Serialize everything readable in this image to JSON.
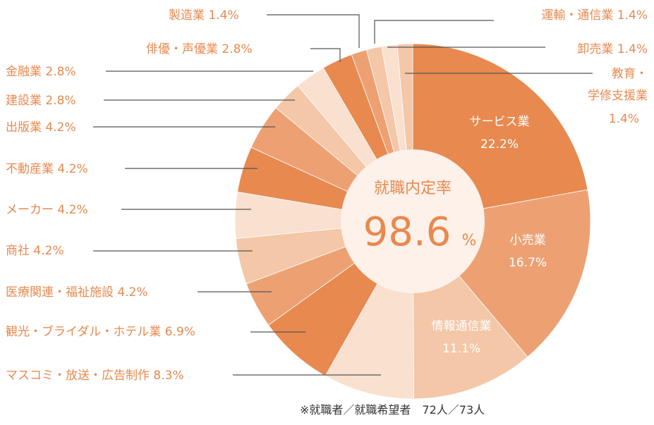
{
  "chart_data": {
    "type": "pie",
    "center": {
      "title": "就職内定率",
      "value": "98.6",
      "unit": "%"
    },
    "slices": [
      {
        "label": "サービス業",
        "value": 22.2,
        "display": "22.2%",
        "color": "#e8894f",
        "label_inside": true
      },
      {
        "label": "小売業",
        "value": 16.7,
        "display": "16.7%",
        "color": "#eda173",
        "label_inside": true
      },
      {
        "label": "情報通信業",
        "value": 11.1,
        "display": "11.1%",
        "color": "#f3c7a7",
        "label_inside": true
      },
      {
        "label": "マスコミ・放送・広告制作",
        "value": 8.3,
        "display": "8.3%",
        "color": "#f9e0cf"
      },
      {
        "label": "観光・ブライダル・ホテル業",
        "value": 6.9,
        "display": "6.9%",
        "color": "#e8894f"
      },
      {
        "label": "医療関連・福祉施設",
        "value": 4.2,
        "display": "4.2%",
        "color": "#eda173"
      },
      {
        "label": "商社",
        "value": 4.2,
        "display": "4.2%",
        "color": "#f3c7a7"
      },
      {
        "label": "メーカー",
        "value": 4.2,
        "display": "4.2%",
        "color": "#f9e0cf"
      },
      {
        "label": "不動産業",
        "value": 4.2,
        "display": "4.2%",
        "color": "#e8894f"
      },
      {
        "label": "出版業",
        "value": 4.2,
        "display": "4.2%",
        "color": "#eda173"
      },
      {
        "label": "建設業",
        "value": 2.8,
        "display": "2.8%",
        "color": "#f3c7a7"
      },
      {
        "label": "金融業",
        "value": 2.8,
        "display": "2.8%",
        "color": "#f9e0cf"
      },
      {
        "label": "俳優・声優業",
        "value": 2.8,
        "display": "2.8%",
        "color": "#e8894f"
      },
      {
        "label": "製造業",
        "value": 1.4,
        "display": "1.4%",
        "color": "#eda173"
      },
      {
        "label": "運輸・通信業",
        "value": 1.4,
        "display": "1.4%",
        "color": "#f3c7a7"
      },
      {
        "label": "卸売業",
        "value": 1.4,
        "display": "1.4%",
        "color": "#f9e0cf"
      },
      {
        "label": "教育・学修支援業",
        "value": 1.4,
        "display": "1.4%",
        "color": "#f3c7a7"
      }
    ],
    "footnote": "※就職者／就職希望者　72人／73人"
  }
}
